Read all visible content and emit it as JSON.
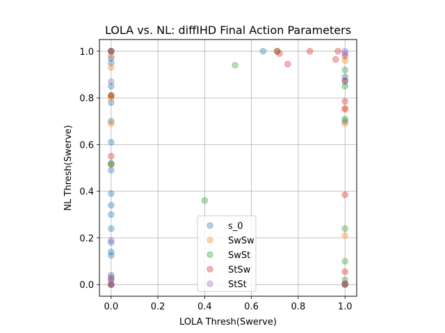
{
  "chart_data": {
    "type": "scatter",
    "title": "LOLA vs. NL: diffIHD Final Action Parameters",
    "xlabel": "LOLA Thresh(Swerve)",
    "ylabel": "NL Thresh(Swerve)",
    "xlim": [
      -0.05,
      1.05
    ],
    "ylim": [
      -0.05,
      1.05
    ],
    "xticks": [
      "0.0",
      "0.2",
      "0.4",
      "0.6",
      "0.8",
      "1.0"
    ],
    "yticks": [
      "0.0",
      "0.2",
      "0.4",
      "0.6",
      "0.8",
      "1.0"
    ],
    "grid": true,
    "legend_position": "lower center",
    "series": [
      {
        "name": "s_0",
        "color": "#1f77b4",
        "x": [
          0,
          0,
          0,
          0,
          0,
          0,
          0,
          0,
          0,
          0,
          0,
          0,
          0,
          0,
          0,
          0,
          0,
          0,
          0,
          0.65,
          1,
          1,
          1,
          1
        ],
        "y": [
          1.0,
          0.97,
          0.95,
          0.85,
          0.78,
          0.7,
          0.61,
          0.52,
          0.49,
          0.39,
          0.34,
          0.3,
          0.24,
          0.18,
          0.14,
          0.125,
          0.04,
          0.02,
          0.0,
          1.0,
          0.89,
          0.87,
          0.7,
          0.0
        ]
      },
      {
        "name": "SwSw",
        "color": "#ff7f0e",
        "x": [
          0,
          0,
          0,
          0,
          0,
          0,
          0,
          0,
          1,
          1,
          1,
          1,
          1
        ],
        "y": [
          1.0,
          0.98,
          0.93,
          0.81,
          0.8,
          0.69,
          0.515,
          0.0,
          0.96,
          0.75,
          0.69,
          0.21,
          0.0
        ]
      },
      {
        "name": "SwSt",
        "color": "#2ca02c",
        "x": [
          0,
          0,
          0,
          0,
          0.4,
          0.53,
          0.71,
          1,
          1,
          1,
          1,
          1,
          1,
          1
        ],
        "y": [
          1.0,
          0.81,
          0.515,
          0.0,
          0.36,
          0.94,
          1.0,
          0.92,
          0.85,
          0.71,
          0.24,
          0.1,
          0.02,
          0.0
        ]
      },
      {
        "name": "StSw",
        "color": "#d62728",
        "x": [
          0,
          0,
          0,
          0,
          0,
          0.71,
          0.72,
          0.755,
          0.85,
          0.96,
          0.97,
          1,
          1,
          1,
          1,
          1,
          1,
          1
        ],
        "y": [
          1.0,
          0.81,
          0.55,
          0.03,
          0.0,
          1.0,
          0.99,
          0.945,
          1.0,
          0.965,
          1.0,
          0.98,
          0.875,
          0.785,
          0.755,
          0.385,
          0.055,
          0.005
        ]
      },
      {
        "name": "StSt",
        "color": "#9467bd",
        "x": [
          0,
          0,
          0,
          0,
          0,
          1,
          1,
          1
        ],
        "y": [
          1.0,
          0.87,
          0.19,
          0.02,
          0.0,
          1.0,
          0.99,
          0.0
        ]
      }
    ]
  }
}
